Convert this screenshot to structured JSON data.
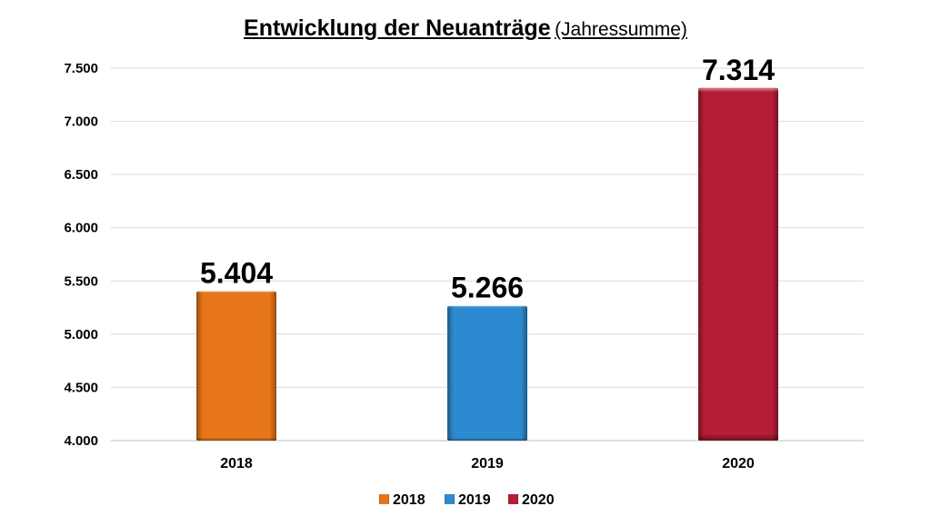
{
  "chart_data": {
    "type": "bar",
    "title": "Entwicklung der Neuanträge",
    "subtitle": "(Jahressumme)",
    "categories": [
      "2018",
      "2019",
      "2020"
    ],
    "values": [
      5404,
      5266,
      7314
    ],
    "value_labels": [
      "5.404",
      "5.266",
      "7.314"
    ],
    "colors": [
      "#E67619",
      "#2E8AD0",
      "#B51E36"
    ],
    "xlabel": "",
    "ylabel": "",
    "ylim": [
      4000,
      7500
    ],
    "yticks": [
      4000,
      4500,
      5000,
      5500,
      6000,
      6500,
      7000,
      7500
    ],
    "ytick_labels": [
      "4.000",
      "4.500",
      "5.000",
      "5.500",
      "6.000",
      "6.500",
      "7.000",
      "7.500"
    ],
    "grid": true,
    "legend": {
      "position": "bottom",
      "entries": [
        "2018",
        "2019",
        "2020"
      ]
    }
  }
}
